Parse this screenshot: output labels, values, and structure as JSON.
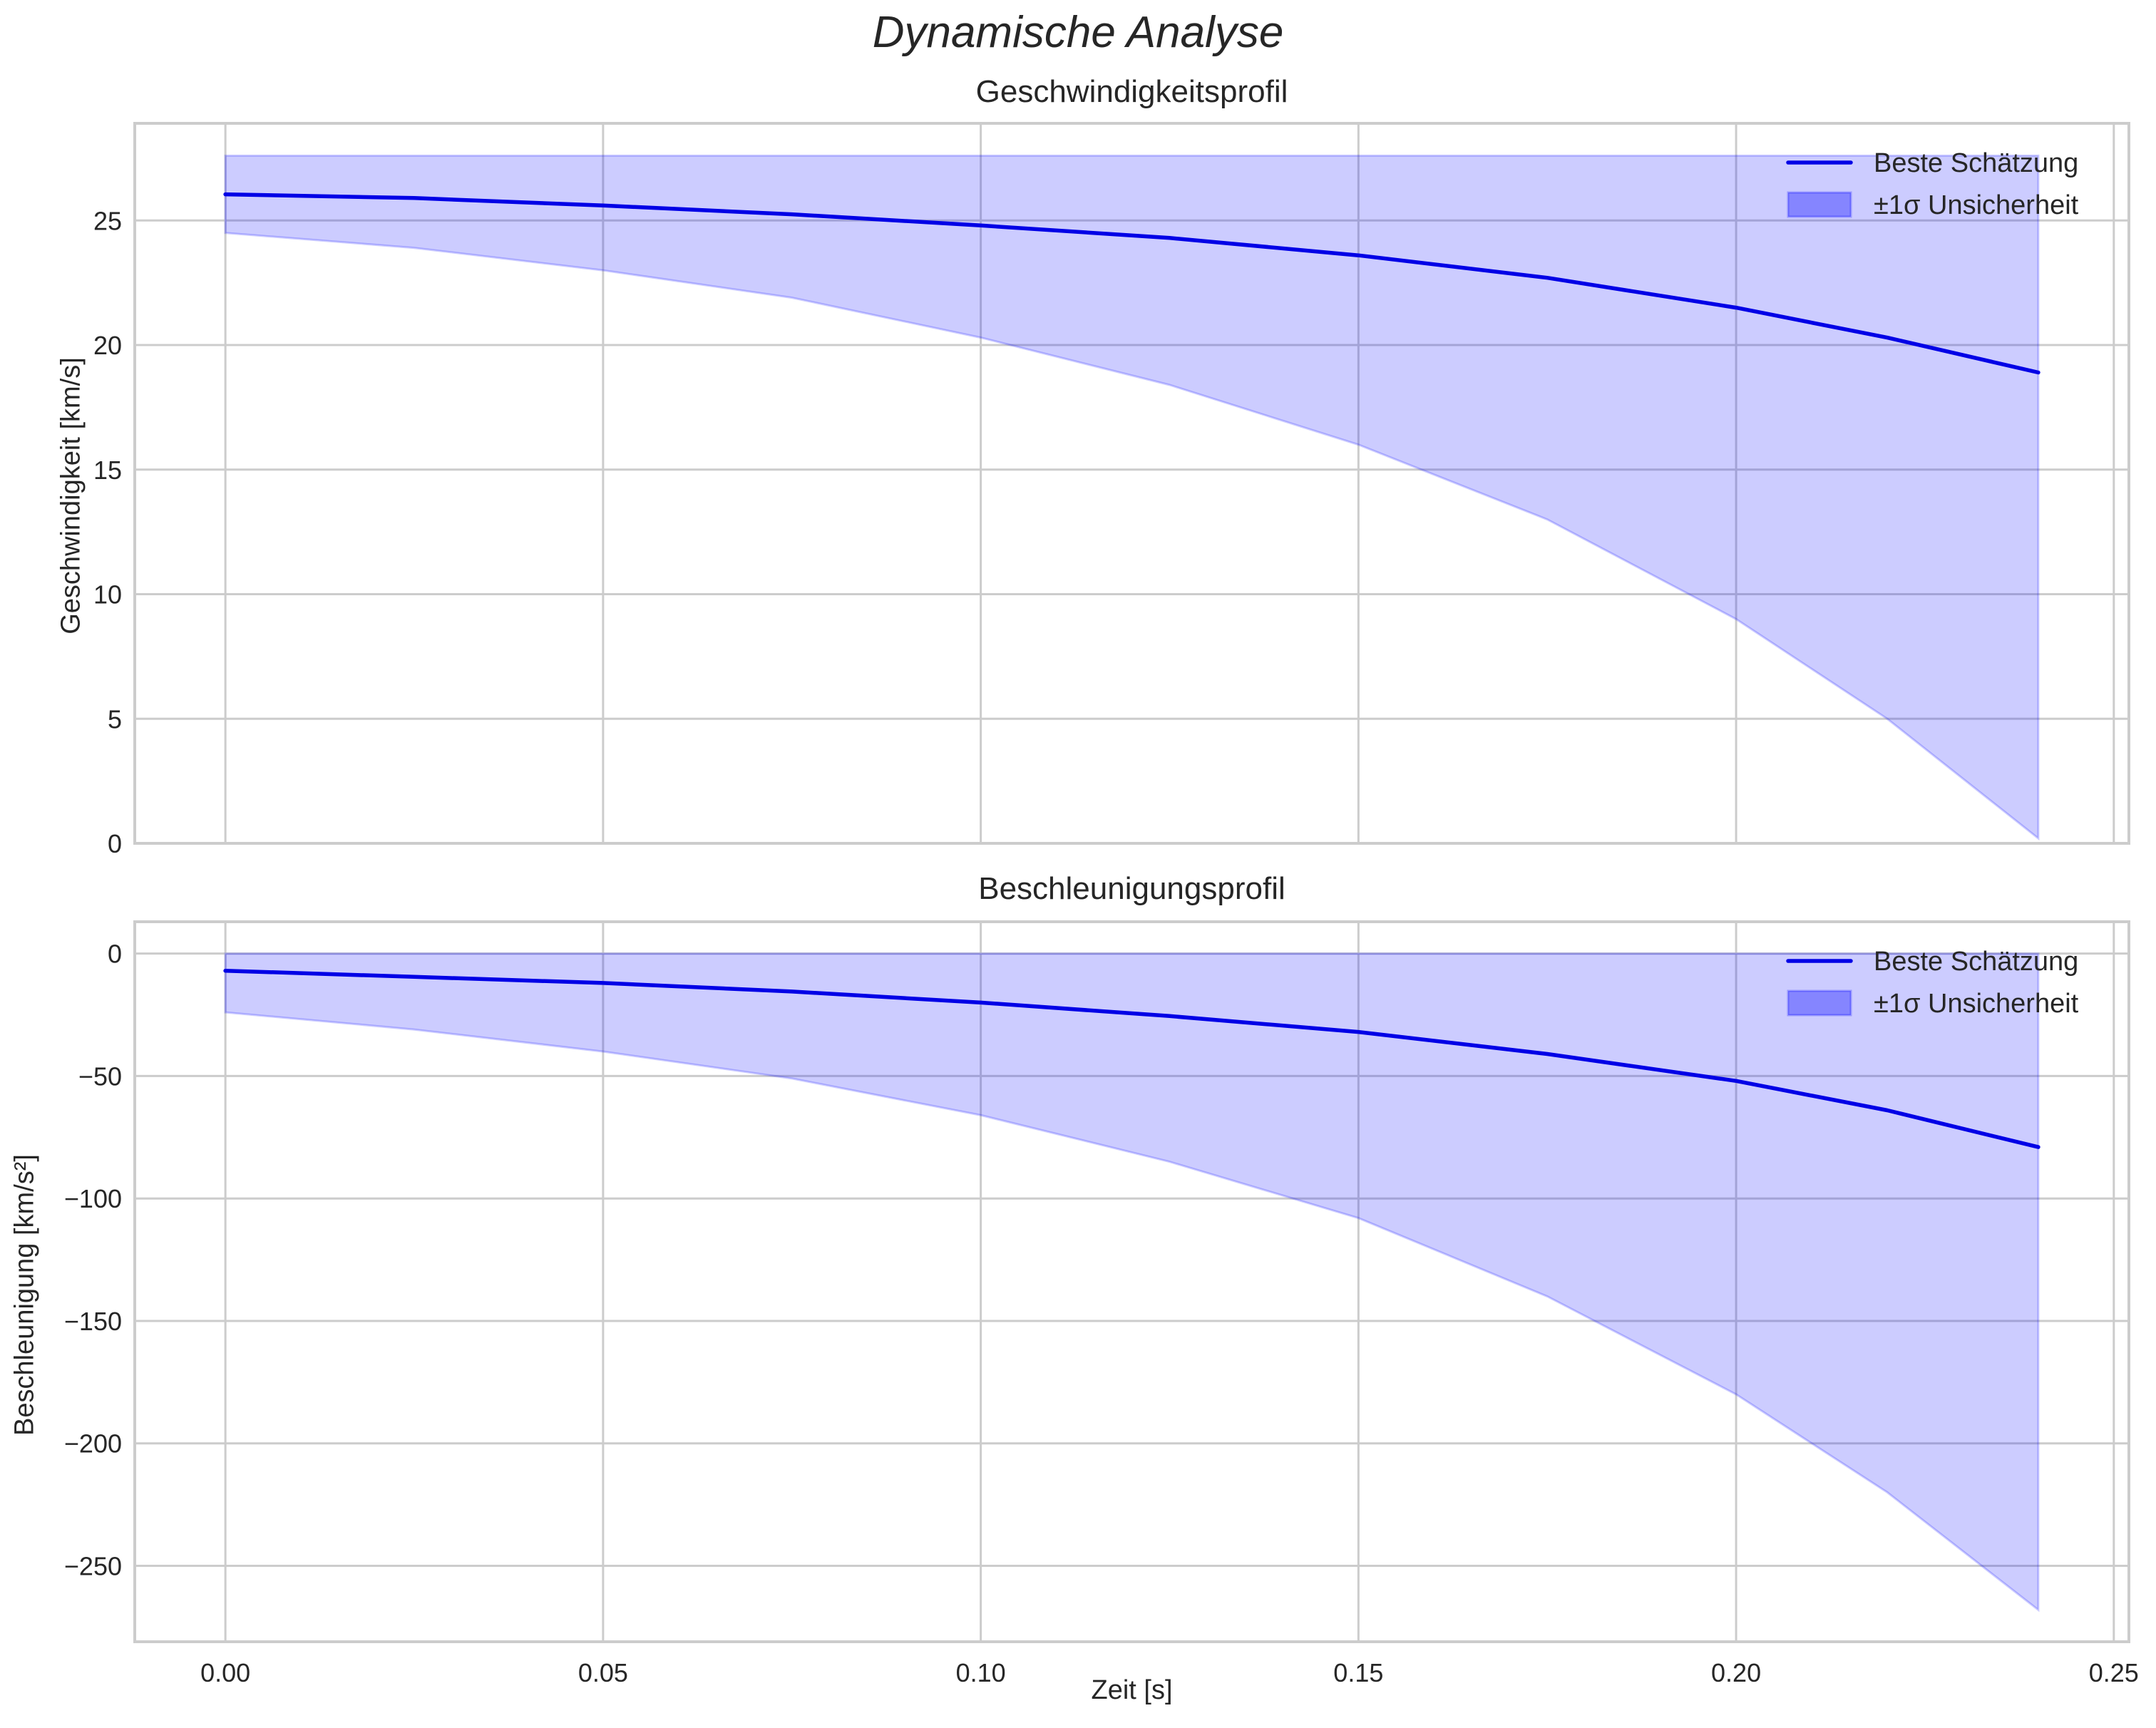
{
  "figure": {
    "suptitle": "Dynamische Analyse"
  },
  "colors": {
    "line": "#0000e6",
    "band_fill": "#ccccfa",
    "band_edge": "#a0a0f0",
    "grid": "#cccccc",
    "axes_edge": "#cccccc"
  },
  "chart_data": [
    {
      "type": "line",
      "title": "Geschwindigkeitsprofil",
      "xlabel": "",
      "ylabel": "Geschwindigkeit [km/s]",
      "xlim": [
        -0.012,
        0.252
      ],
      "ylim": [
        0,
        28.9
      ],
      "xticks": [
        0.0,
        0.05,
        0.1,
        0.15,
        0.2,
        0.25
      ],
      "xtick_labels": [
        "0.00",
        "0.05",
        "0.10",
        "0.15",
        "0.20",
        "0.25"
      ],
      "yticks": [
        0,
        5,
        10,
        15,
        20,
        25
      ],
      "ytick_labels": [
        "0",
        "5",
        "10",
        "15",
        "20",
        "25"
      ],
      "grid": true,
      "legend_position": "upper right",
      "x": [
        0.0,
        0.025,
        0.05,
        0.075,
        0.1,
        0.125,
        0.15,
        0.175,
        0.2,
        0.22,
        0.24
      ],
      "series": [
        {
          "name": "Beste Schätzung",
          "kind": "line",
          "values": [
            26.05,
            25.9,
            25.6,
            25.25,
            24.8,
            24.3,
            23.6,
            22.7,
            21.5,
            20.3,
            18.9
          ]
        },
        {
          "name": "±1σ Unsicherheit",
          "kind": "band",
          "lower": [
            24.5,
            23.9,
            23.0,
            21.9,
            20.3,
            18.4,
            16.0,
            13.0,
            9.0,
            5.0,
            0.2
          ],
          "upper": [
            27.6,
            27.6,
            27.6,
            27.6,
            27.6,
            27.6,
            27.6,
            27.6,
            27.6,
            27.6,
            27.6
          ]
        }
      ]
    },
    {
      "type": "line",
      "title": "Beschleunigungsprofil",
      "xlabel": "Zeit [s]",
      "ylabel": "Beschleunigung [km/s²]",
      "xlim": [
        -0.012,
        0.252
      ],
      "ylim": [
        -281,
        13
      ],
      "xticks": [
        0.0,
        0.05,
        0.1,
        0.15,
        0.2,
        0.25
      ],
      "xtick_labels": [
        "0.00",
        "0.05",
        "0.10",
        "0.15",
        "0.20",
        "0.25"
      ],
      "yticks": [
        0,
        -50,
        -100,
        -150,
        -200,
        -250
      ],
      "ytick_labels": [
        "0",
        "−50",
        "−100",
        "−150",
        "−200",
        "−250"
      ],
      "grid": true,
      "legend_position": "upper right",
      "x": [
        0.0,
        0.025,
        0.05,
        0.075,
        0.1,
        0.125,
        0.15,
        0.175,
        0.2,
        0.22,
        0.24
      ],
      "series": [
        {
          "name": "Beste Schätzung",
          "kind": "line",
          "values": [
            -7,
            -9.5,
            -12,
            -15.5,
            -20,
            -25.5,
            -32,
            -41,
            -52,
            -64,
            -79
          ]
        },
        {
          "name": "±1σ Unsicherheit",
          "kind": "band",
          "lower": [
            -24,
            -31,
            -40,
            -51,
            -66,
            -85,
            -108,
            -140,
            -180,
            -220,
            -268
          ],
          "upper": [
            0,
            0,
            0,
            0,
            0,
            0,
            0,
            0,
            0,
            0,
            0
          ]
        }
      ]
    }
  ],
  "legend": {
    "items": [
      {
        "label": "Beste Schätzung",
        "icon": "line-swatch"
      },
      {
        "label": "±1σ Unsicherheit",
        "icon": "patch-swatch"
      }
    ]
  }
}
